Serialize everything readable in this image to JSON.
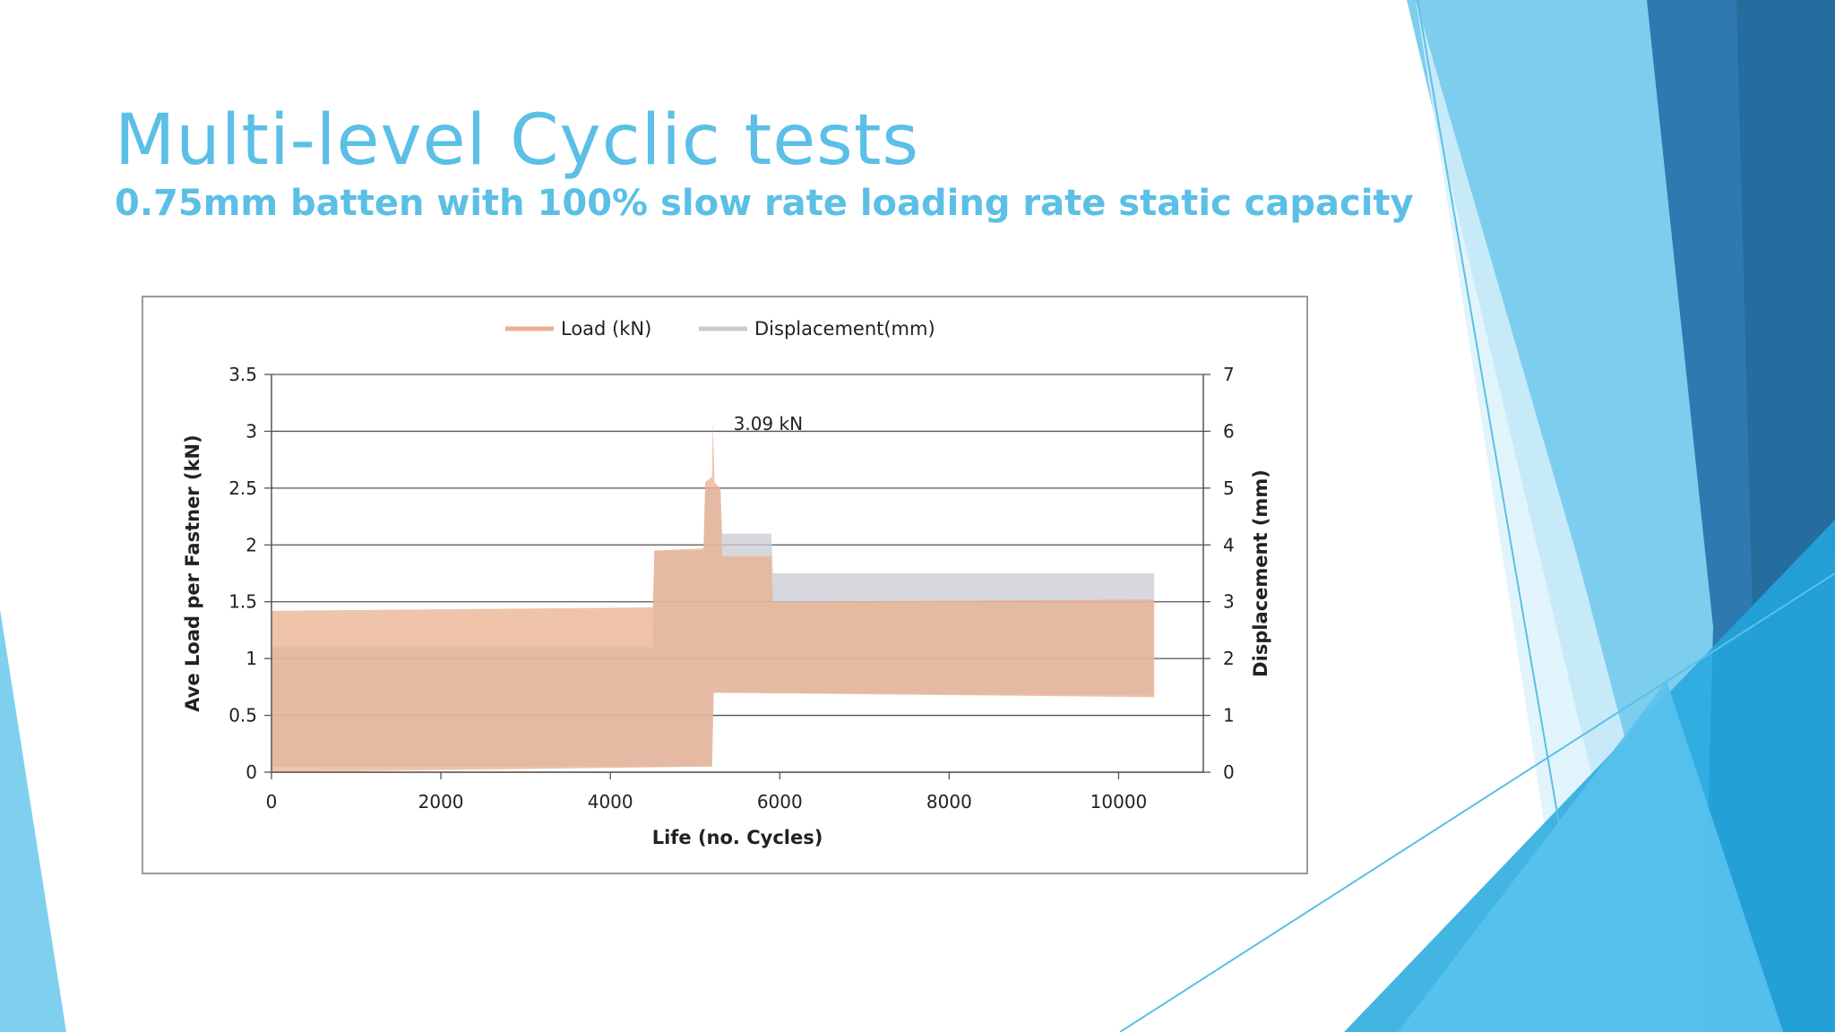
{
  "slide": {
    "title": "Multi-level Cyclic tests",
    "subtitle": "0.75mm batten with 100% slow rate loading rate static capacity"
  },
  "colors": {
    "title": "#5bbfe6",
    "load": "#eab08e",
    "displacement": "#c9cbd3"
  },
  "chart_data": {
    "type": "area",
    "title": "",
    "xlabel": "Life (no. Cycles)",
    "ylabel": "Ave Load per Fastner (kN)",
    "y2label": "Displacement (mm)",
    "xlim": [
      0,
      11000
    ],
    "ylim": [
      0,
      3.5
    ],
    "y2lim": [
      0,
      7
    ],
    "xticks": [
      "0",
      "2000",
      "4000",
      "6000",
      "8000",
      "10000"
    ],
    "xtick_values": [
      0,
      2000,
      4000,
      6000,
      8000,
      10000
    ],
    "yticks": [
      "0",
      "0.5",
      "1",
      "1.5",
      "2",
      "2.5",
      "3",
      "3.5"
    ],
    "ytick_values": [
      0,
      0.5,
      1,
      1.5,
      2,
      2.5,
      3,
      3.5
    ],
    "y2ticks": [
      "0",
      "1",
      "2",
      "3",
      "4",
      "5",
      "6",
      "7"
    ],
    "y2tick_values": [
      0,
      1,
      2,
      3,
      4,
      5,
      6,
      7
    ],
    "grid": true,
    "legend_position": "top",
    "legend": [
      "Load (kN)",
      "Displacement(mm)"
    ],
    "annotation": {
      "text": "3.09 kN",
      "x": 5200,
      "y": 3.09
    },
    "series": [
      {
        "name": "Load (kN)",
        "axis": "left",
        "upper": [
          [
            0,
            1.42
          ],
          [
            4500,
            1.45
          ],
          [
            4520,
            1.95
          ],
          [
            5100,
            1.97
          ],
          [
            5120,
            2.55
          ],
          [
            5200,
            2.6
          ],
          [
            5210,
            3.09
          ],
          [
            5230,
            2.55
          ],
          [
            5300,
            2.5
          ],
          [
            5320,
            1.9
          ],
          [
            5900,
            1.9
          ],
          [
            5920,
            1.5
          ],
          [
            10420,
            1.52
          ]
        ],
        "lower": [
          [
            0,
            0.0
          ],
          [
            5200,
            0.05
          ],
          [
            5220,
            0.7
          ],
          [
            10420,
            0.66
          ]
        ]
      },
      {
        "name": "Displacement(mm)",
        "axis": "right",
        "upper": [
          [
            0,
            2.2
          ],
          [
            4500,
            2.2
          ],
          [
            4520,
            3.9
          ],
          [
            5100,
            3.9
          ],
          [
            5120,
            5.0
          ],
          [
            5300,
            5.0
          ],
          [
            5320,
            4.2
          ],
          [
            5900,
            4.2
          ],
          [
            5920,
            3.5
          ],
          [
            10420,
            3.5
          ]
        ],
        "lower": [
          [
            0,
            0.1
          ],
          [
            5200,
            0.1
          ],
          [
            5220,
            1.4
          ],
          [
            10420,
            1.35
          ]
        ]
      }
    ]
  }
}
